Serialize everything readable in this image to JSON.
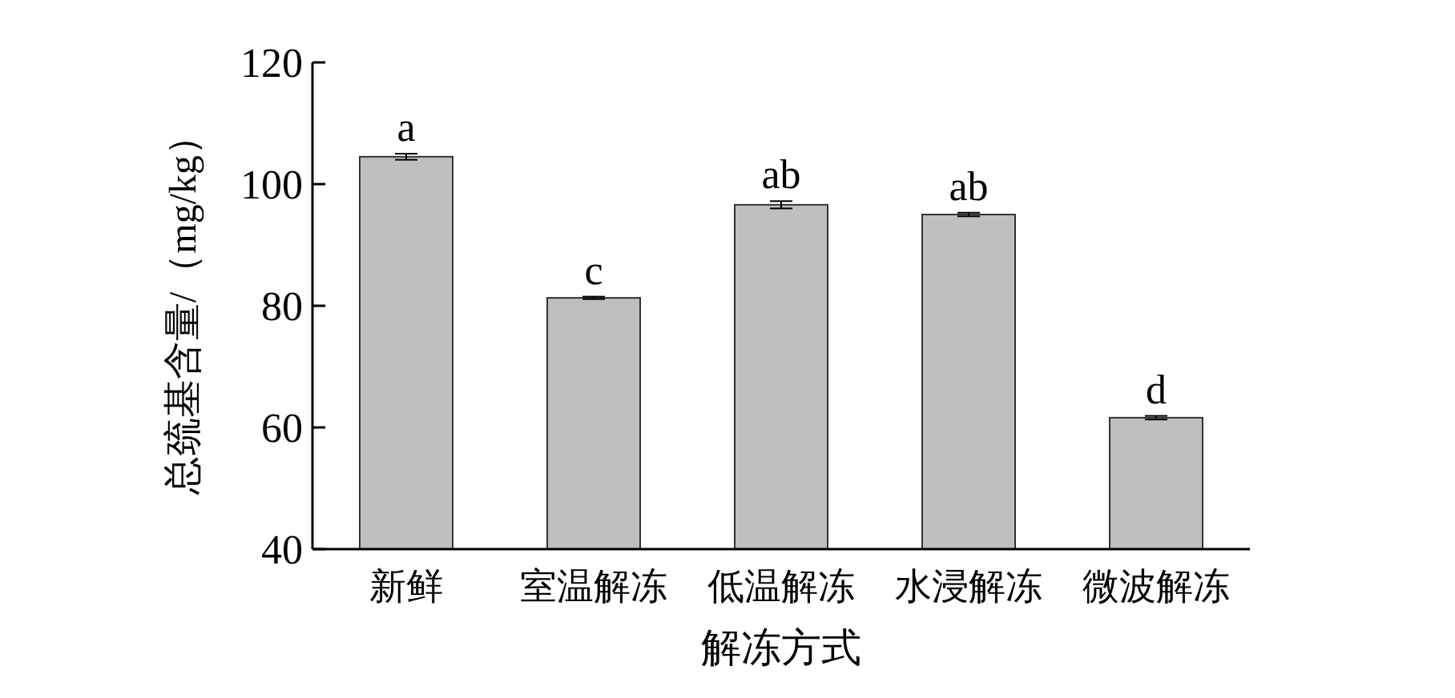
{
  "chart_data": {
    "type": "bar",
    "xlabel": "解冻方式",
    "ylabel": "总巯基含量/（mg/kg）",
    "categories": [
      "新鲜",
      "室温解冻",
      "低温解冻",
      "水浸解冻",
      "微波解冻"
    ],
    "values": [
      104.5,
      81.3,
      96.6,
      95.0,
      61.6
    ],
    "errors": [
      0.5,
      0.2,
      0.6,
      0.3,
      0.3
    ],
    "color": "#bebfc1",
    "ylim": [
      40,
      120
    ],
    "yticks": [
      40,
      60,
      80,
      100,
      120
    ],
    "annotations": [
      {
        "text": "a",
        "x": "新鲜",
        "y": 105.0
      },
      {
        "text": "c",
        "x": "室温解冻",
        "y": 81.5
      },
      {
        "text": "ab",
        "x": "低温解冻",
        "y": 97.2
      },
      {
        "text": "ab",
        "x": "水浸解冻",
        "y": 95.3
      },
      {
        "text": "d",
        "x": "微波解冻",
        "y": 61.9
      }
    ]
  }
}
